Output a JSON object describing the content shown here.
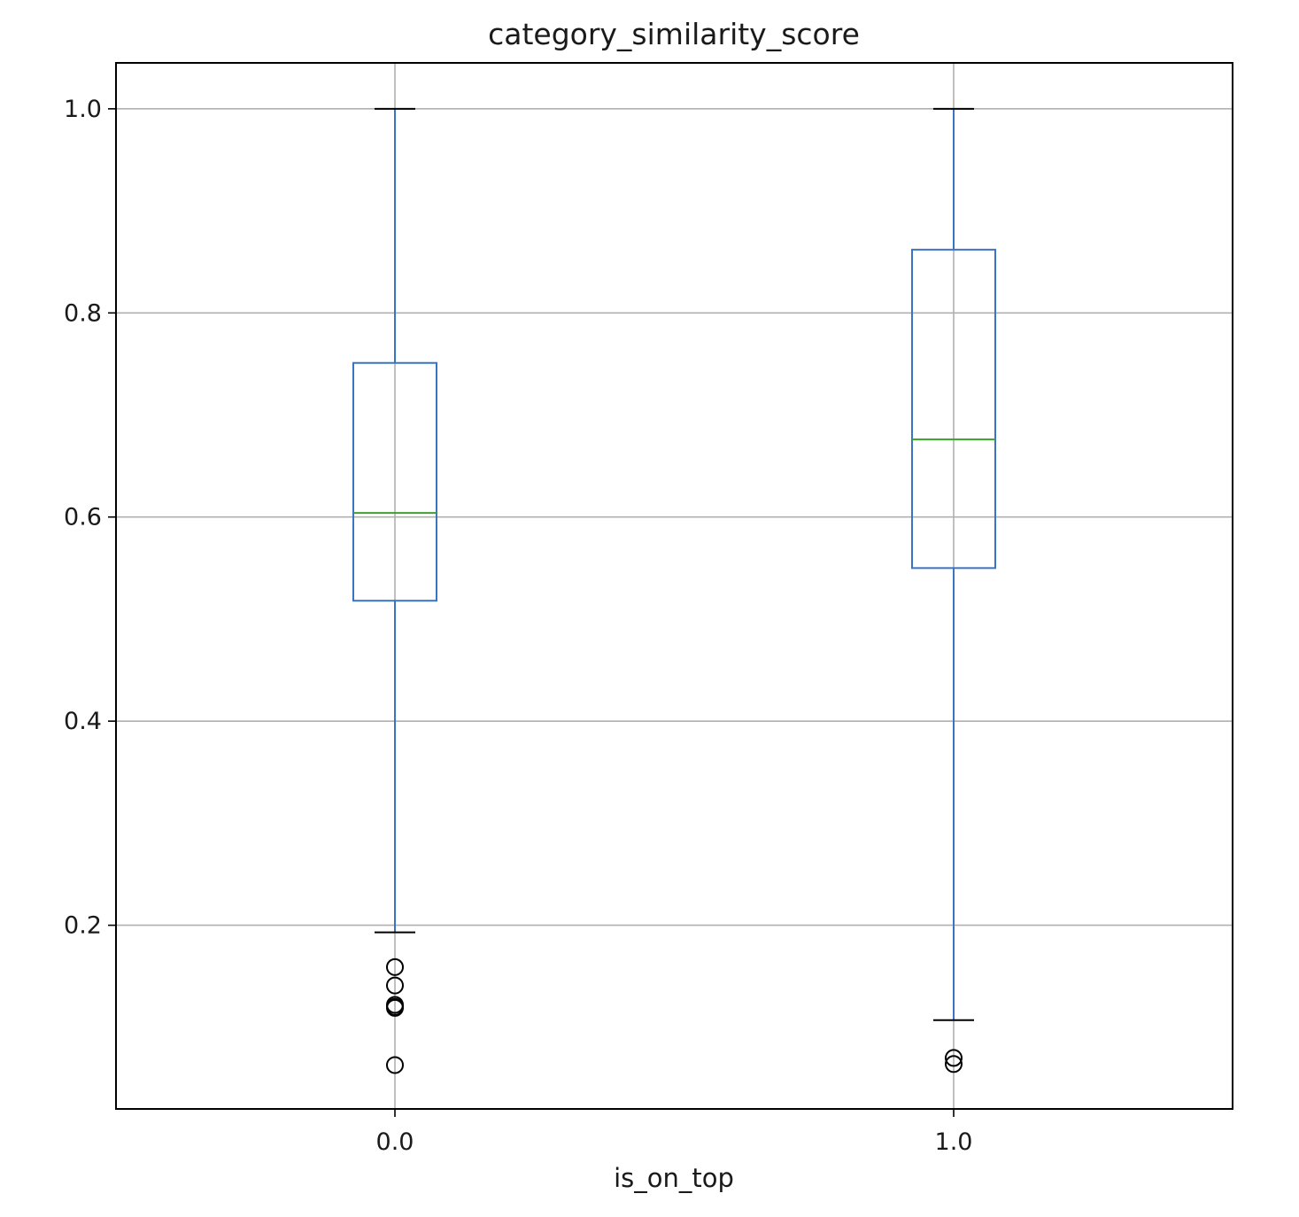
{
  "chart_data": {
    "type": "box",
    "title": "category_similarity_score",
    "xlabel": "is_on_top",
    "ylabel": "",
    "ylim": [
      0.02,
      1.045
    ],
    "yticks": [
      0.2,
      0.4,
      0.6,
      0.8,
      1.0
    ],
    "ytick_labels": [
      "0.2",
      "0.4",
      "0.6",
      "0.8",
      "1.0"
    ],
    "grid": true,
    "categories": [
      "0.0",
      "1.0"
    ],
    "boxes": [
      {
        "category": "0.0",
        "whisker_low": 0.193,
        "q1": 0.518,
        "median": 0.604,
        "q3": 0.751,
        "whisker_high": 1.0,
        "outliers": [
          0.159,
          0.141,
          0.122,
          0.12,
          0.119,
          0.063
        ]
      },
      {
        "category": "1.0",
        "whisker_low": 0.107,
        "q1": 0.55,
        "median": 0.676,
        "q3": 0.862,
        "whisker_high": 1.0,
        "outliers": [
          0.07,
          0.064
        ]
      }
    ],
    "colors": {
      "box": "#3a75c4",
      "median": "#3ca02c",
      "outlier": "#000000",
      "grid": "#b0b0b0",
      "frame": "#000000"
    }
  }
}
